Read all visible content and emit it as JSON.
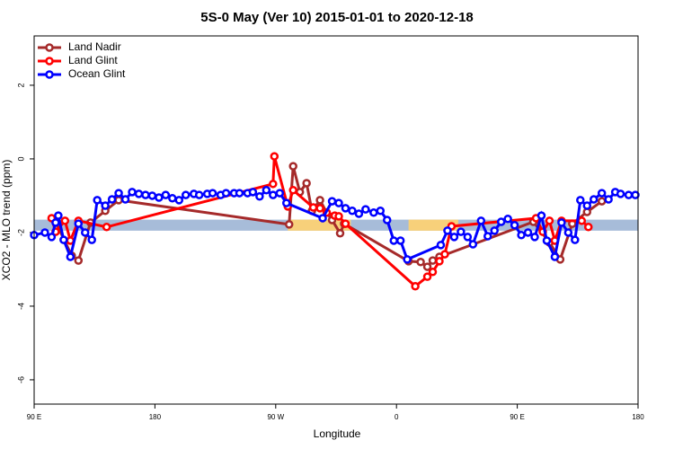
{
  "chart_data": {
    "type": "line",
    "title": "5S-0 May (Ver 10)   2015-01-01 to 2020-12-18",
    "x_label": "Longitude",
    "y_label": "XCO2 - MLO trend (ppm)",
    "xlim": [
      90,
      540
    ],
    "ylim": [
      -6.66,
      3.34
    ],
    "xticks": [
      {
        "value": 90,
        "label": "90 E"
      },
      {
        "value": 180,
        "label": "180"
      },
      {
        "value": 270,
        "label": "90 W"
      },
      {
        "value": 360,
        "label": "0"
      },
      {
        "value": 450,
        "label": "90 E"
      },
      {
        "value": 540,
        "label": "180"
      }
    ],
    "yticks": [
      2,
      0,
      -2,
      -4,
      -6
    ],
    "legend": "top-left",
    "bands": [
      {
        "x": [
          90,
          540
        ],
        "y": [
          -1.65,
          -1.95
        ],
        "color": "#a7bcd9"
      },
      {
        "x": [
          279,
          326
        ],
        "y": [
          -1.65,
          -1.95
        ],
        "color": "#f7d07a"
      },
      {
        "x": [
          369,
          406
        ],
        "y": [
          -1.65,
          -1.95
        ],
        "color": "#f7d07a"
      }
    ],
    "series": [
      {
        "name": "Land Nadir",
        "color": "#a52a2a",
        "x": [
          106,
          118,
          123,
          132,
          143,
          153,
          280,
          283,
          288,
          293,
          297,
          303,
          308,
          312,
          318,
          321,
          369,
          378,
          383,
          387,
          392,
          462,
          474,
          482,
          491,
          502,
          513
        ],
        "values": [
          -1.71,
          -2.63,
          -2.76,
          -1.73,
          -1.41,
          -1.12,
          -1.78,
          -0.2,
          -0.9,
          -0.66,
          -1.41,
          -1.12,
          -1.46,
          -1.66,
          -2.02,
          -1.76,
          -2.78,
          -2.8,
          -2.93,
          -2.76,
          -2.66,
          -1.71,
          -2.27,
          -2.73,
          -1.76,
          -1.44,
          -1.15
        ]
      },
      {
        "name": "Land Glint",
        "color": "#ff0000",
        "x": [
          103,
          106,
          113,
          117,
          123,
          144,
          268,
          269,
          279,
          283,
          298,
          303,
          308,
          314,
          317,
          322,
          374,
          383,
          387,
          392,
          396,
          401,
          464,
          469,
          474,
          478,
          483,
          498,
          503
        ],
        "values": [
          -1.61,
          -1.98,
          -1.68,
          -2.22,
          -1.68,
          -1.85,
          -0.68,
          0.07,
          -1.29,
          -0.85,
          -1.32,
          -1.34,
          -1.46,
          -1.54,
          -1.56,
          -1.76,
          -3.46,
          -3.2,
          -3.07,
          -2.78,
          -2.59,
          -1.83,
          -1.61,
          -1.98,
          -1.68,
          -2.22,
          -1.68,
          -1.68,
          -1.85
        ]
      },
      {
        "name": "Ocean Glint",
        "color": "#0000ff",
        "x": [
          90,
          98,
          103,
          106,
          108,
          112,
          117,
          123,
          128,
          133,
          137,
          143,
          148,
          153,
          158,
          163,
          168,
          173,
          178,
          183,
          188,
          193,
          198,
          203,
          209,
          213,
          219,
          223,
          229,
          233,
          239,
          243,
          249,
          253,
          258,
          263,
          268,
          273,
          278,
          305,
          312,
          317,
          322,
          327,
          332,
          337,
          343,
          348,
          353,
          358,
          363,
          368,
          393,
          398,
          403,
          408,
          413,
          417,
          423,
          428,
          433,
          438,
          443,
          448,
          453,
          458,
          463,
          468,
          472,
          478,
          483,
          488,
          493,
          497,
          502,
          507,
          513,
          518,
          523,
          527,
          533,
          538
        ],
        "values": [
          -2.07,
          -2.0,
          -2.12,
          -1.73,
          -1.54,
          -2.2,
          -2.66,
          -1.76,
          -2.0,
          -2.2,
          -1.12,
          -1.27,
          -1.1,
          -0.93,
          -1.1,
          -0.9,
          -0.95,
          -0.98,
          -1.0,
          -1.05,
          -0.98,
          -1.07,
          -1.12,
          -0.98,
          -0.95,
          -0.98,
          -0.95,
          -0.93,
          -0.98,
          -0.93,
          -0.93,
          -0.93,
          -0.93,
          -0.9,
          -1.02,
          -0.85,
          -0.98,
          -0.93,
          -1.2,
          -1.61,
          -1.15,
          -1.2,
          -1.34,
          -1.41,
          -1.49,
          -1.37,
          -1.46,
          -1.41,
          -1.66,
          -2.22,
          -2.22,
          -2.73,
          -2.34,
          -1.95,
          -2.12,
          -1.98,
          -2.12,
          -2.32,
          -1.68,
          -2.1,
          -1.95,
          -1.71,
          -1.63,
          -1.8,
          -2.07,
          -2.0,
          -2.12,
          -1.54,
          -2.22,
          -2.66,
          -1.73,
          -2.0,
          -2.2,
          -1.12,
          -1.27,
          -1.1,
          -0.93,
          -1.1,
          -0.9,
          -0.95,
          -0.98,
          -0.98
        ]
      }
    ]
  }
}
